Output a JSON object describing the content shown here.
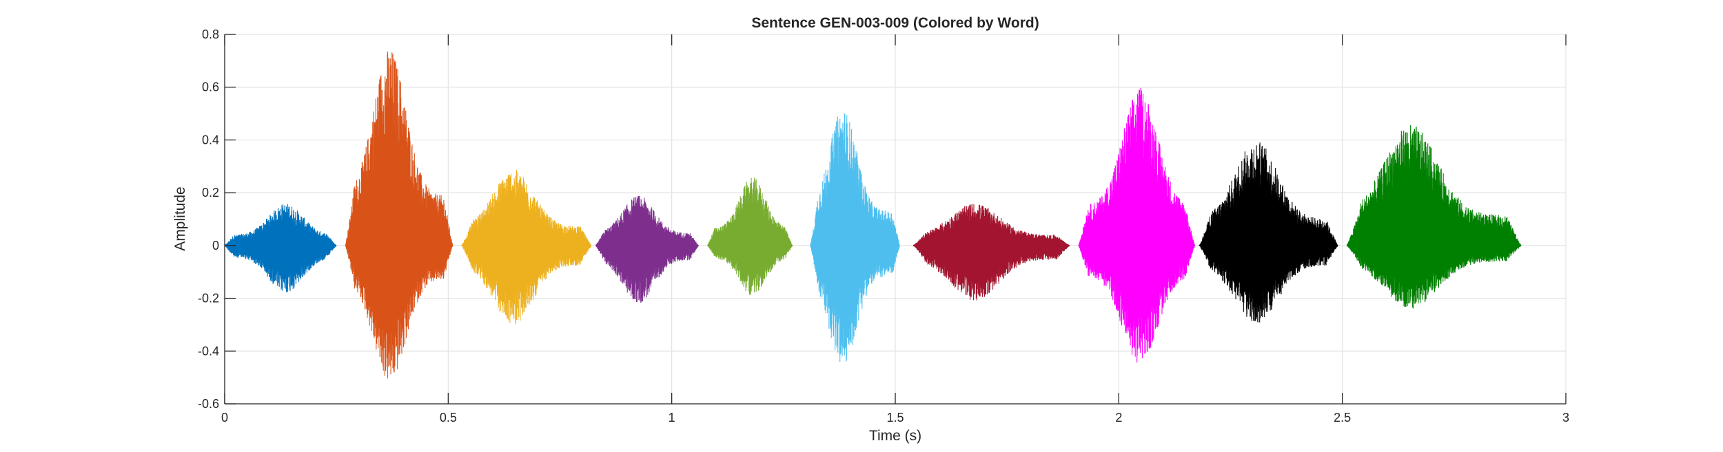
{
  "chart_data": {
    "type": "line",
    "title": "Sentence GEN-003-009 (Colored by Word)",
    "xlabel": "Time (s)",
    "ylabel": "Amplitude",
    "xlim": [
      0,
      3
    ],
    "ylim": [
      -0.6,
      0.8
    ],
    "xticks": [
      0,
      0.5,
      1,
      1.5,
      2,
      2.5,
      3
    ],
    "xtick_labels": [
      "0",
      "0.5",
      "1",
      "1.5",
      "2",
      "2.5",
      "3"
    ],
    "yticks": [
      -0.6,
      -0.4,
      -0.2,
      0,
      0.2,
      0.4,
      0.6,
      0.8
    ],
    "ytick_labels": [
      "-0.6",
      "-0.4",
      "-0.2",
      "0",
      "0.2",
      "0.4",
      "0.6",
      "0.8"
    ],
    "grid": true,
    "legend": "none",
    "series": [
      {
        "color": "#0072BD",
        "start": 0.0,
        "end": 0.25,
        "max": 0.16,
        "min": -0.18
      },
      {
        "color": "#D95319",
        "start": 0.27,
        "end": 0.51,
        "max": 0.75,
        "min": -0.52
      },
      {
        "color": "#EDB120",
        "start": 0.53,
        "end": 0.82,
        "max": 0.29,
        "min": -0.3
      },
      {
        "color": "#7E2F8E",
        "start": 0.83,
        "end": 1.06,
        "max": 0.19,
        "min": -0.22
      },
      {
        "color": "#77AC30",
        "start": 1.08,
        "end": 1.27,
        "max": 0.26,
        "min": -0.19
      },
      {
        "color": "#4DBEEE",
        "start": 1.31,
        "end": 1.51,
        "max": 0.52,
        "min": -0.46
      },
      {
        "color": "#A2142F",
        "start": 1.54,
        "end": 1.89,
        "max": 0.16,
        "min": -0.21
      },
      {
        "color": "#FF00FF",
        "start": 1.91,
        "end": 2.17,
        "max": 0.6,
        "min": -0.45
      },
      {
        "color": "#000000",
        "start": 2.18,
        "end": 2.49,
        "max": 0.4,
        "min": -0.3
      },
      {
        "color": "#008000",
        "start": 2.51,
        "end": 2.9,
        "max": 0.46,
        "min": -0.24
      }
    ]
  }
}
